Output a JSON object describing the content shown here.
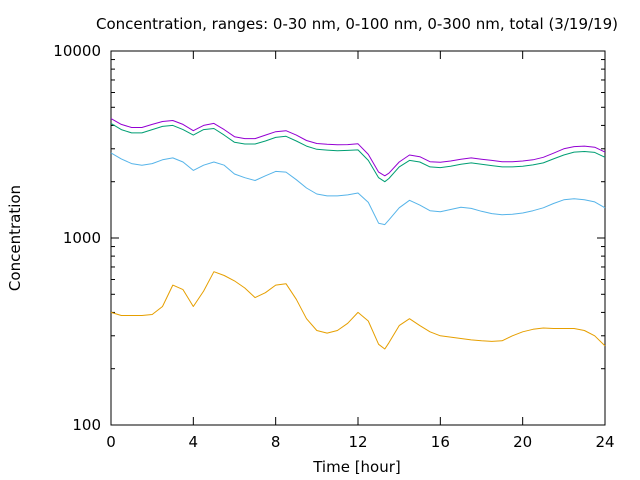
{
  "chart_data": {
    "type": "line",
    "title": "Concentration, ranges: 0-30 nm, 0-100 nm, 0-300 nm, total (3/19/19)",
    "xlabel": "Time [hour]",
    "ylabel": "Concentration",
    "xlim": [
      0,
      24
    ],
    "ylim": [
      100,
      10000
    ],
    "yscale": "log",
    "grid": false,
    "legend": "none",
    "x_ticks": [
      0,
      4,
      8,
      12,
      16,
      20,
      24
    ],
    "x_tick_labels": [
      "0",
      "4",
      "8",
      "12",
      "16",
      "20",
      "24"
    ],
    "y_ticks": [
      100,
      1000,
      10000
    ],
    "y_tick_labels": [
      "100",
      "1000",
      "10000"
    ],
    "x": [
      0,
      0.5,
      1,
      1.5,
      2,
      2.5,
      3,
      3.5,
      4,
      4.5,
      5,
      5.5,
      6,
      6.5,
      7,
      7.5,
      8,
      8.5,
      9,
      9.5,
      10,
      10.5,
      11,
      11.5,
      12,
      12.5,
      13,
      13.3,
      13.5,
      14,
      14.5,
      15,
      15.5,
      16,
      16.5,
      17,
      17.5,
      18,
      18.5,
      19,
      19.5,
      20,
      20.5,
      21,
      21.5,
      22,
      22.5,
      23,
      23.5,
      24
    ],
    "series": [
      {
        "color": "#e69f00",
        "values": [
          400,
          385,
          385,
          385,
          390,
          430,
          560,
          530,
          430,
          520,
          660,
          630,
          590,
          540,
          480,
          510,
          560,
          570,
          470,
          370,
          320,
          310,
          320,
          350,
          400,
          360,
          270,
          255,
          275,
          340,
          370,
          340,
          315,
          300,
          295,
          290,
          285,
          282,
          280,
          282,
          300,
          315,
          325,
          330,
          328,
          328,
          328,
          320,
          300,
          265
        ]
      },
      {
        "color": "#56b4e9",
        "values": [
          2850,
          2650,
          2500,
          2450,
          2500,
          2620,
          2680,
          2550,
          2300,
          2450,
          2550,
          2450,
          2200,
          2100,
          2030,
          2150,
          2270,
          2250,
          2050,
          1850,
          1720,
          1680,
          1680,
          1700,
          1740,
          1550,
          1200,
          1180,
          1250,
          1450,
          1590,
          1500,
          1400,
          1380,
          1420,
          1460,
          1440,
          1390,
          1350,
          1330,
          1340,
          1360,
          1400,
          1450,
          1530,
          1600,
          1620,
          1600,
          1560,
          1450
        ]
      },
      {
        "color": "#009e73",
        "values": [
          4100,
          3800,
          3650,
          3650,
          3800,
          3950,
          4000,
          3800,
          3550,
          3800,
          3850,
          3550,
          3250,
          3180,
          3180,
          3300,
          3450,
          3500,
          3300,
          3100,
          2980,
          2950,
          2930,
          2940,
          2960,
          2600,
          2100,
          2000,
          2080,
          2400,
          2600,
          2550,
          2400,
          2380,
          2420,
          2480,
          2520,
          2480,
          2440,
          2400,
          2400,
          2420,
          2460,
          2520,
          2650,
          2780,
          2880,
          2900,
          2870,
          2700
        ]
      },
      {
        "color": "#9400d3",
        "values": [
          4350,
          4050,
          3900,
          3900,
          4050,
          4200,
          4250,
          4050,
          3750,
          4000,
          4100,
          3800,
          3480,
          3400,
          3400,
          3550,
          3700,
          3750,
          3550,
          3320,
          3200,
          3170,
          3150,
          3160,
          3190,
          2800,
          2250,
          2150,
          2220,
          2550,
          2780,
          2720,
          2560,
          2540,
          2580,
          2640,
          2680,
          2640,
          2600,
          2560,
          2560,
          2580,
          2620,
          2700,
          2840,
          3000,
          3080,
          3100,
          3060,
          2880
        ]
      }
    ]
  }
}
